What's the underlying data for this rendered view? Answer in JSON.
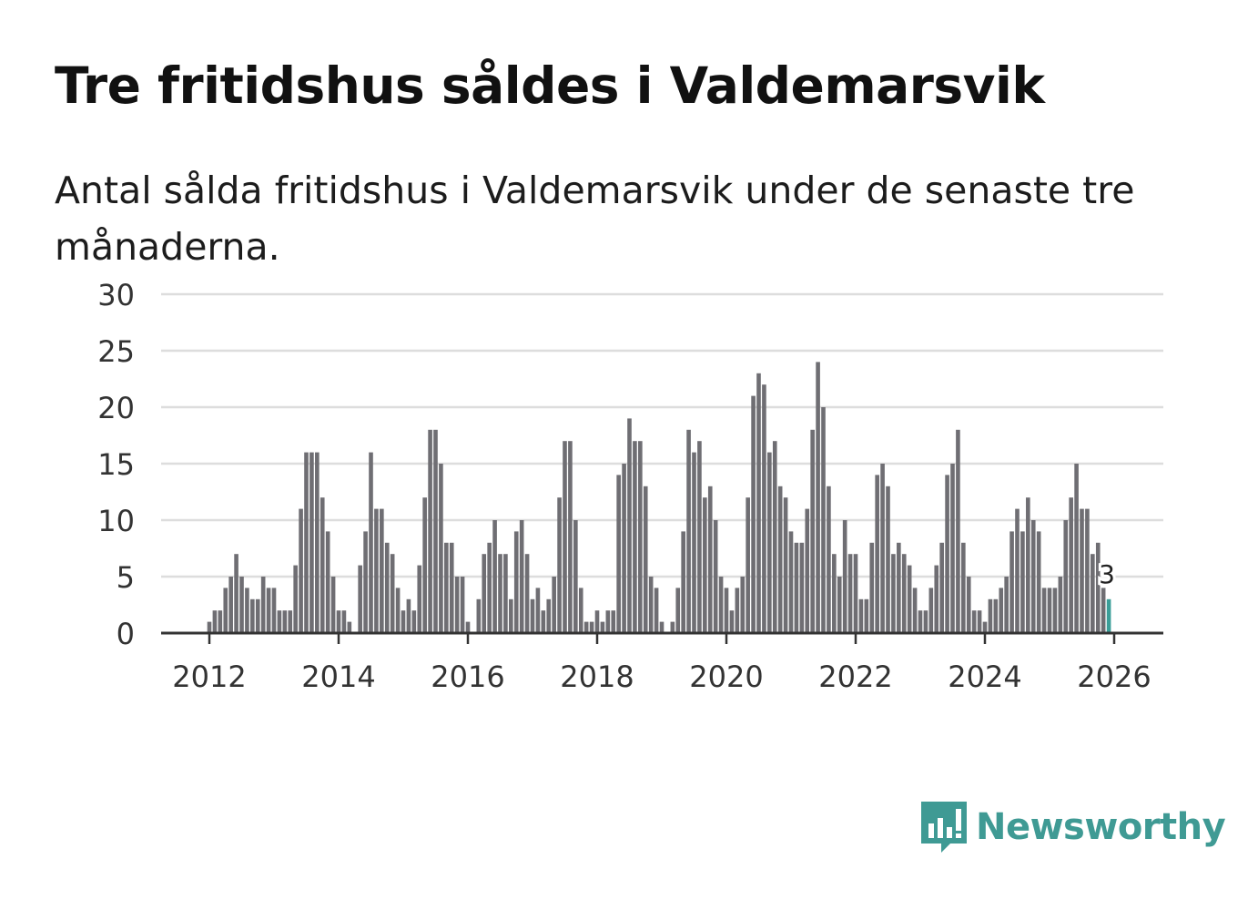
{
  "title": "Tre fritidshus såldes i Valdemarsvik",
  "subtitle": "Antal sålda fritidshus i Valdemarsvik under de senaste tre månaderna.",
  "colors": {
    "bar": "#6f6e73",
    "highlight": "#3a9e98",
    "grid": "#dddddd",
    "axis": "#333333",
    "brand": "#3f9a94"
  },
  "chart_data": {
    "type": "bar",
    "title": "Tre fritidshus såldes i Valdemarsvik",
    "xlabel": "",
    "ylabel": "",
    "x_start": {
      "year": 2012,
      "month": 1
    },
    "ylim": [
      0,
      30
    ],
    "yticks": [
      0,
      5,
      10,
      15,
      20,
      25,
      30
    ],
    "xticks": [
      2012,
      2014,
      2016,
      2018,
      2020,
      2022,
      2024,
      2026
    ],
    "values": [
      1,
      2,
      2,
      4,
      5,
      7,
      5,
      4,
      3,
      3,
      5,
      4,
      4,
      2,
      2,
      2,
      6,
      11,
      16,
      16,
      16,
      12,
      9,
      5,
      2,
      2,
      1,
      0,
      6,
      9,
      16,
      11,
      11,
      8,
      7,
      4,
      2,
      3,
      2,
      6,
      12,
      18,
      18,
      15,
      8,
      8,
      5,
      5,
      1,
      0,
      3,
      7,
      8,
      10,
      7,
      7,
      3,
      9,
      10,
      7,
      3,
      4,
      2,
      3,
      5,
      12,
      17,
      17,
      10,
      4,
      1,
      1,
      2,
      1,
      2,
      2,
      14,
      15,
      19,
      17,
      17,
      13,
      5,
      4,
      1,
      0,
      1,
      4,
      9,
      18,
      16,
      17,
      12,
      13,
      10,
      5,
      4,
      2,
      4,
      5,
      12,
      21,
      23,
      22,
      16,
      17,
      13,
      12,
      9,
      8,
      8,
      11,
      18,
      24,
      20,
      13,
      7,
      5,
      10,
      7,
      7,
      3,
      3,
      8,
      14,
      15,
      13,
      7,
      8,
      7,
      6,
      4,
      2,
      2,
      4,
      6,
      8,
      14,
      15,
      18,
      8,
      5,
      2,
      2,
      1,
      3,
      3,
      4,
      5,
      9,
      11,
      9,
      12,
      10,
      9,
      4,
      4,
      4,
      5,
      10,
      12,
      15,
      11,
      11,
      7,
      8,
      4,
      3
    ],
    "highlight_last": true,
    "annotation": {
      "label": "3",
      "value": 3
    }
  },
  "logo": {
    "text": "Newsworthy",
    "icon": "bar-chart-speech-bubble-icon"
  }
}
